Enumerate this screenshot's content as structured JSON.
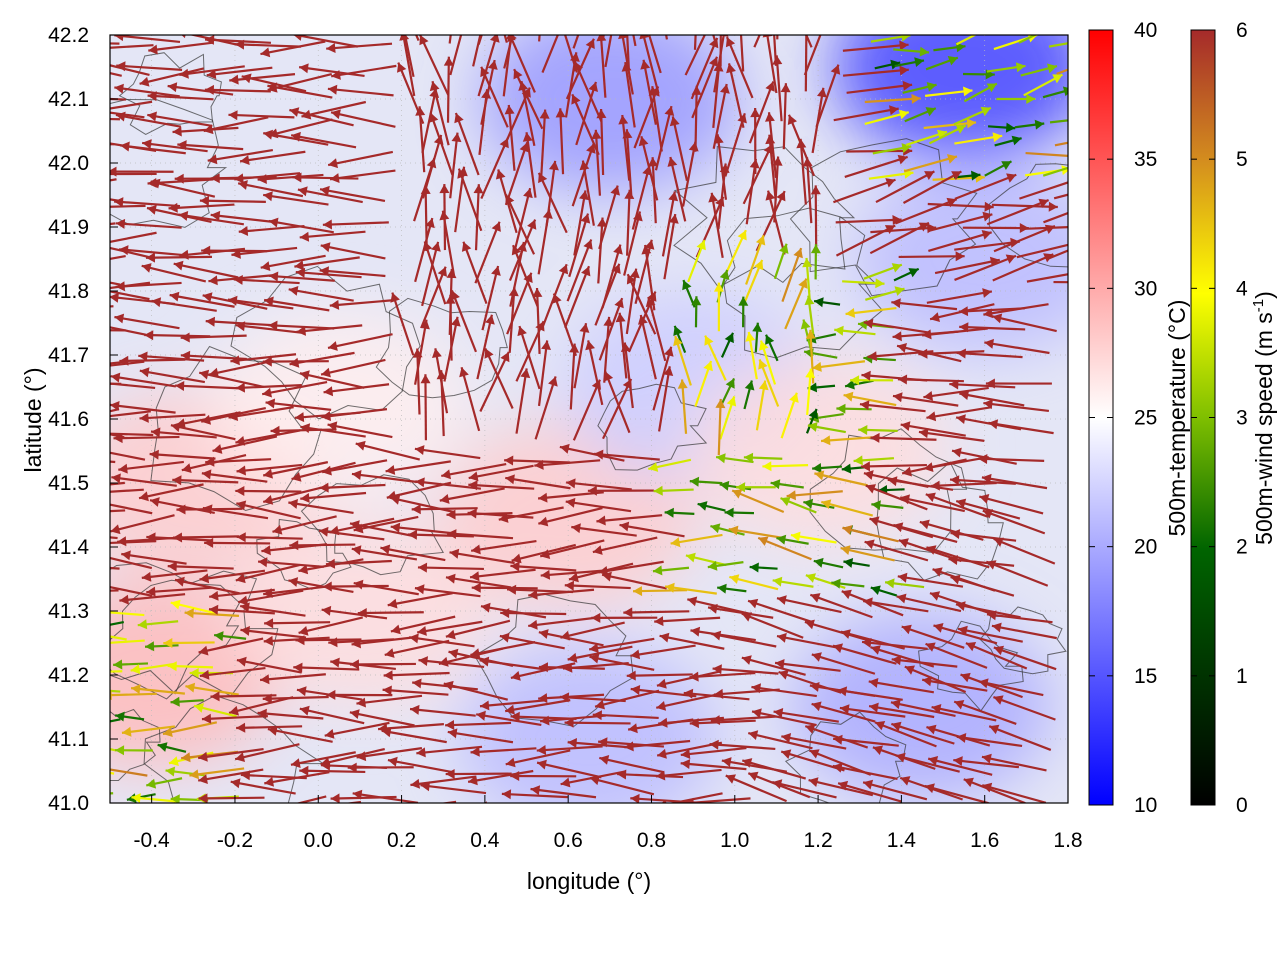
{
  "chart_data": {
    "type": "heatmap",
    "title": "",
    "xlabel": "longitude (°)",
    "ylabel": "latitude (°)",
    "xlim": [
      -0.5,
      1.8
    ],
    "ylim": [
      41.0,
      42.2
    ],
    "x_ticks": [
      "-0.4",
      "-0.2",
      "0.0",
      "0.2",
      "0.4",
      "0.6",
      "0.8",
      "1.0",
      "1.2",
      "1.4",
      "1.6",
      "1.8"
    ],
    "y_ticks": [
      "41.0",
      "41.1",
      "41.2",
      "41.3",
      "41.4",
      "41.5",
      "41.6",
      "41.7",
      "41.8",
      "41.9",
      "42.0",
      "42.1",
      "42.2"
    ],
    "grid": true,
    "colorbars": [
      {
        "label": "500m-temperature (°C)",
        "range": [
          10,
          40
        ],
        "ticks": [
          "10",
          "15",
          "20",
          "25",
          "30",
          "35",
          "40"
        ],
        "colors": [
          "#0000ff",
          "#ffffff",
          "#ff0000"
        ]
      },
      {
        "label": "500m-wind speed (m s-1)",
        "label_parts": {
          "pre": "500m-wind speed (m s",
          "sup": "-1",
          "post": ")"
        },
        "range": [
          0,
          6
        ],
        "ticks": [
          "0",
          "1",
          "2",
          "3",
          "4",
          "5",
          "6"
        ],
        "colors": [
          "#000000",
          "#006400",
          "#7fbf00",
          "#ffff00",
          "#d48e1e",
          "#a52a2a"
        ]
      }
    ],
    "temperature_regions": [
      {
        "lon": -0.4,
        "lat": 41.2,
        "temp": 29
      },
      {
        "lon": -0.3,
        "lat": 41.5,
        "temp": 28
      },
      {
        "lon": 0.05,
        "lat": 41.62,
        "temp": 26
      },
      {
        "lon": 0.1,
        "lat": 41.3,
        "temp": 27
      },
      {
        "lon": 0.6,
        "lat": 41.45,
        "temp": 28
      },
      {
        "lon": 0.65,
        "lat": 41.1,
        "temp": 21
      },
      {
        "lon": 0.9,
        "lat": 41.65,
        "temp": 22
      },
      {
        "lon": 1.2,
        "lat": 41.55,
        "temp": 27
      },
      {
        "lon": 1.45,
        "lat": 41.15,
        "temp": 20
      },
      {
        "lon": 1.6,
        "lat": 41.85,
        "temp": 21
      },
      {
        "lon": 1.55,
        "lat": 42.15,
        "temp": 14
      },
      {
        "lon": 0.7,
        "lat": 42.1,
        "temp": 19
      }
    ],
    "wind_field": {
      "description": "vector field of 500 m winds, arrows coloured by speed",
      "dominant_direction": "westward",
      "dominant_speed": 6
    }
  }
}
